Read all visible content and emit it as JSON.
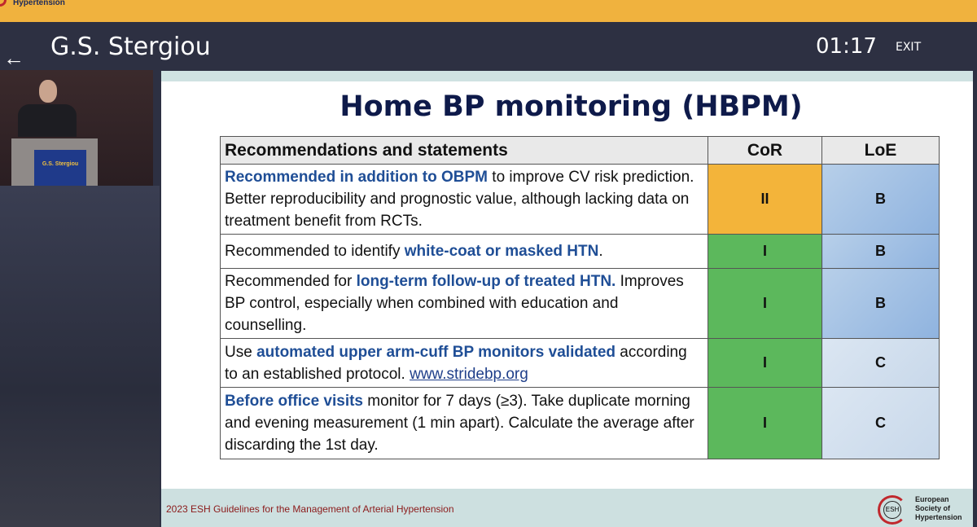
{
  "topbar": {
    "brand": "Hypertension"
  },
  "header": {
    "back_icon": "arrow-left-icon",
    "speaker": "G.S. Stergiou",
    "timer": "01:17",
    "exit": "EXIT"
  },
  "video": {
    "podium_sign": "G.S. Stergiou"
  },
  "slide": {
    "title": "Home BP monitoring (HBPM)",
    "columns": [
      "Recommendations and statements",
      "CoR",
      "LoE"
    ],
    "rows": [
      {
        "pre": "",
        "bold": "Recommended in addition to OBPM",
        "post": " to improve CV risk prediction. Better reproducibility and prognostic value, although lacking data on treatment benefit from RCTs.",
        "cor": "II",
        "loe": "B"
      },
      {
        "pre": "Recommended to identify ",
        "bold": "white-coat or masked HTN",
        "post": ".",
        "cor": "I",
        "loe": "B"
      },
      {
        "pre": "Recommended for ",
        "bold": "long-term follow-up of treated HTN.",
        "post": " Improves BP control, especially when combined with education and counselling.",
        "cor": "I",
        "loe": "B"
      },
      {
        "pre": "Use ",
        "bold": "automated upper arm-cuff BP monitors validated",
        "post": " according to an established protocol. ",
        "link": "www.stridebp.org",
        "cor": "I",
        "loe": "C"
      },
      {
        "pre": "",
        "bold": "Before office visits",
        "post": " monitor for 7 days (≥3). Take duplicate morning and evening measurement (1 min apart). Calculate the average after discarding the 1st day.",
        "cor": "I",
        "loe": "C"
      }
    ],
    "footer": "2023 ESH Guidelines for the Management of Arterial Hypertension",
    "logo": {
      "abbr": "ESH",
      "line1": "European",
      "line2": "Society of",
      "line3": "Hypertension"
    }
  },
  "colors": {
    "cor_II": "#f3b43a",
    "cor_I": "#5cb85c",
    "loe_B": "#a3c1e4",
    "loe_C": "#d3e0ee",
    "title": "#0e1a4a",
    "highlight": "#1f4e96"
  }
}
